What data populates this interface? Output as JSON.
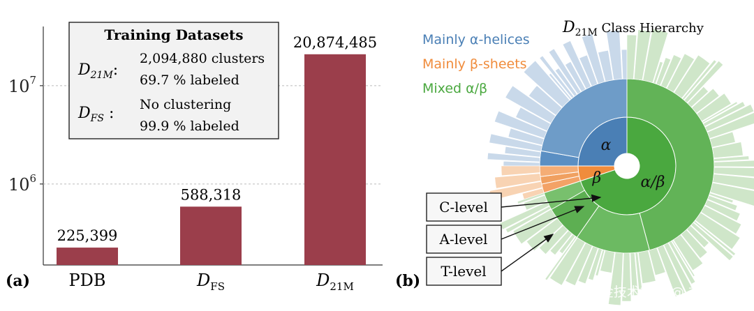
{
  "chart_data": [
    {
      "panel": "(a)",
      "type": "bar",
      "yscale": "log",
      "ylim": [
        150000,
        40000000
      ],
      "ytick_labels": [
        {
          "base": "10",
          "exp": "6",
          "value": 1000000
        },
        {
          "base": "10",
          "exp": "7",
          "value": 10000000
        }
      ],
      "categories": [
        {
          "main": "PDB",
          "sub": ""
        },
        {
          "main": "D",
          "sub": "FS"
        },
        {
          "main": "D",
          "sub": "21M"
        }
      ],
      "values": [
        225399,
        588318,
        20874485
      ],
      "value_labels": [
        "225,399",
        "588,318",
        "20,874,485"
      ],
      "bar_color": "#9b3e4b",
      "grid": true,
      "legend_box": {
        "title": "Training Datasets",
        "entries": [
          {
            "sym": "D",
            "sub": "21M",
            "line1": "2,094,880 clusters",
            "line2": "69.7 % labeled"
          },
          {
            "sym": "D",
            "sub": "FS",
            "line1": "No clustering",
            "line2": "99.9 % labeled"
          }
        ]
      }
    },
    {
      "panel": "(b)",
      "type": "sunburst",
      "title_sym": "D",
      "title_sub": "21M",
      "title_rest": "Class Hierarchy",
      "legend": [
        {
          "label": "Mainly α-helices",
          "color": "#4a7fb5"
        },
        {
          "label": "Mainly β-sheets",
          "color": "#f08c3c"
        },
        {
          "label": "Mixed α/β",
          "color": "#4aa83f"
        }
      ],
      "level_labels": [
        "C-level",
        "A-level",
        "T-level"
      ],
      "classes": [
        {
          "symbol": "α",
          "color": "#4a7fb5",
          "from_deg": 270,
          "to_deg": 360
        },
        {
          "symbol": "β",
          "color": "#f08c3c",
          "from_deg": 252,
          "to_deg": 270
        },
        {
          "symbol": "α/β",
          "color": "#4aa83f",
          "from_deg": 0,
          "to_deg": 252
        }
      ]
    }
  ],
  "watermark": "掘金技术社区 @ 神经星星"
}
